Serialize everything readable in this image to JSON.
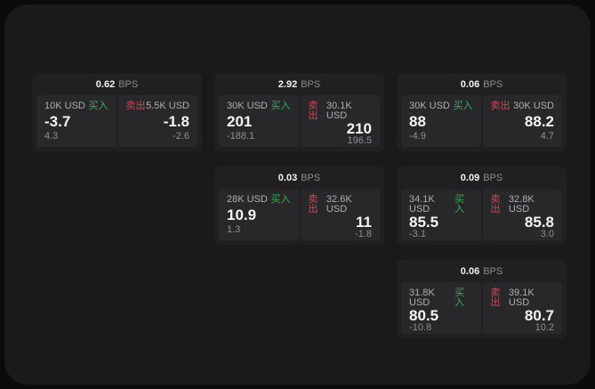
{
  "labels": {
    "bps_unit": "BPS",
    "buy": "买入",
    "sell": "卖出"
  },
  "colors": {
    "buy_green": "#3fa85a",
    "sell_red": "#c9475a",
    "panel_bg": "#1a1a1c",
    "card_bg": "#202023",
    "tile_bg": "#28282b"
  },
  "cards": [
    {
      "bps": "0.62",
      "buy": {
        "amount": "10K USD",
        "price": "-3.7",
        "sub": "4.3"
      },
      "sell": {
        "amount": "5.5K USD",
        "price": "-1.8",
        "sub": "-2.6"
      }
    },
    {
      "bps": "2.92",
      "buy": {
        "amount": "30K USD",
        "price": "201",
        "sub": "-188.1"
      },
      "sell": {
        "amount": "30.1K USD",
        "price": "210",
        "sub": "196.5"
      }
    },
    {
      "bps": "0.06",
      "buy": {
        "amount": "30K USD",
        "price": "88",
        "sub": "-4.9"
      },
      "sell": {
        "amount": "30K USD",
        "price": "88.2",
        "sub": "4.7"
      }
    },
    {
      "bps": "0.03",
      "buy": {
        "amount": "28K USD",
        "price": "10.9",
        "sub": "1.3"
      },
      "sell": {
        "amount": "32.6K USD",
        "price": "11",
        "sub": "-1.8"
      }
    },
    {
      "bps": "0.09",
      "buy": {
        "amount": "34.1K USD",
        "price": "85.5",
        "sub": "-3.1"
      },
      "sell": {
        "amount": "32.8K USD",
        "price": "85.8",
        "sub": "3.0"
      }
    },
    {
      "bps": "0.06",
      "buy": {
        "amount": "31.8K USD",
        "price": "80.5",
        "sub": "-10.8"
      },
      "sell": {
        "amount": "39.1K USD",
        "price": "80.7",
        "sub": "10.2"
      }
    }
  ],
  "grid_slots": [
    "1/1",
    "1/2",
    "1/3",
    "2/2",
    "2/3",
    "3/3"
  ]
}
